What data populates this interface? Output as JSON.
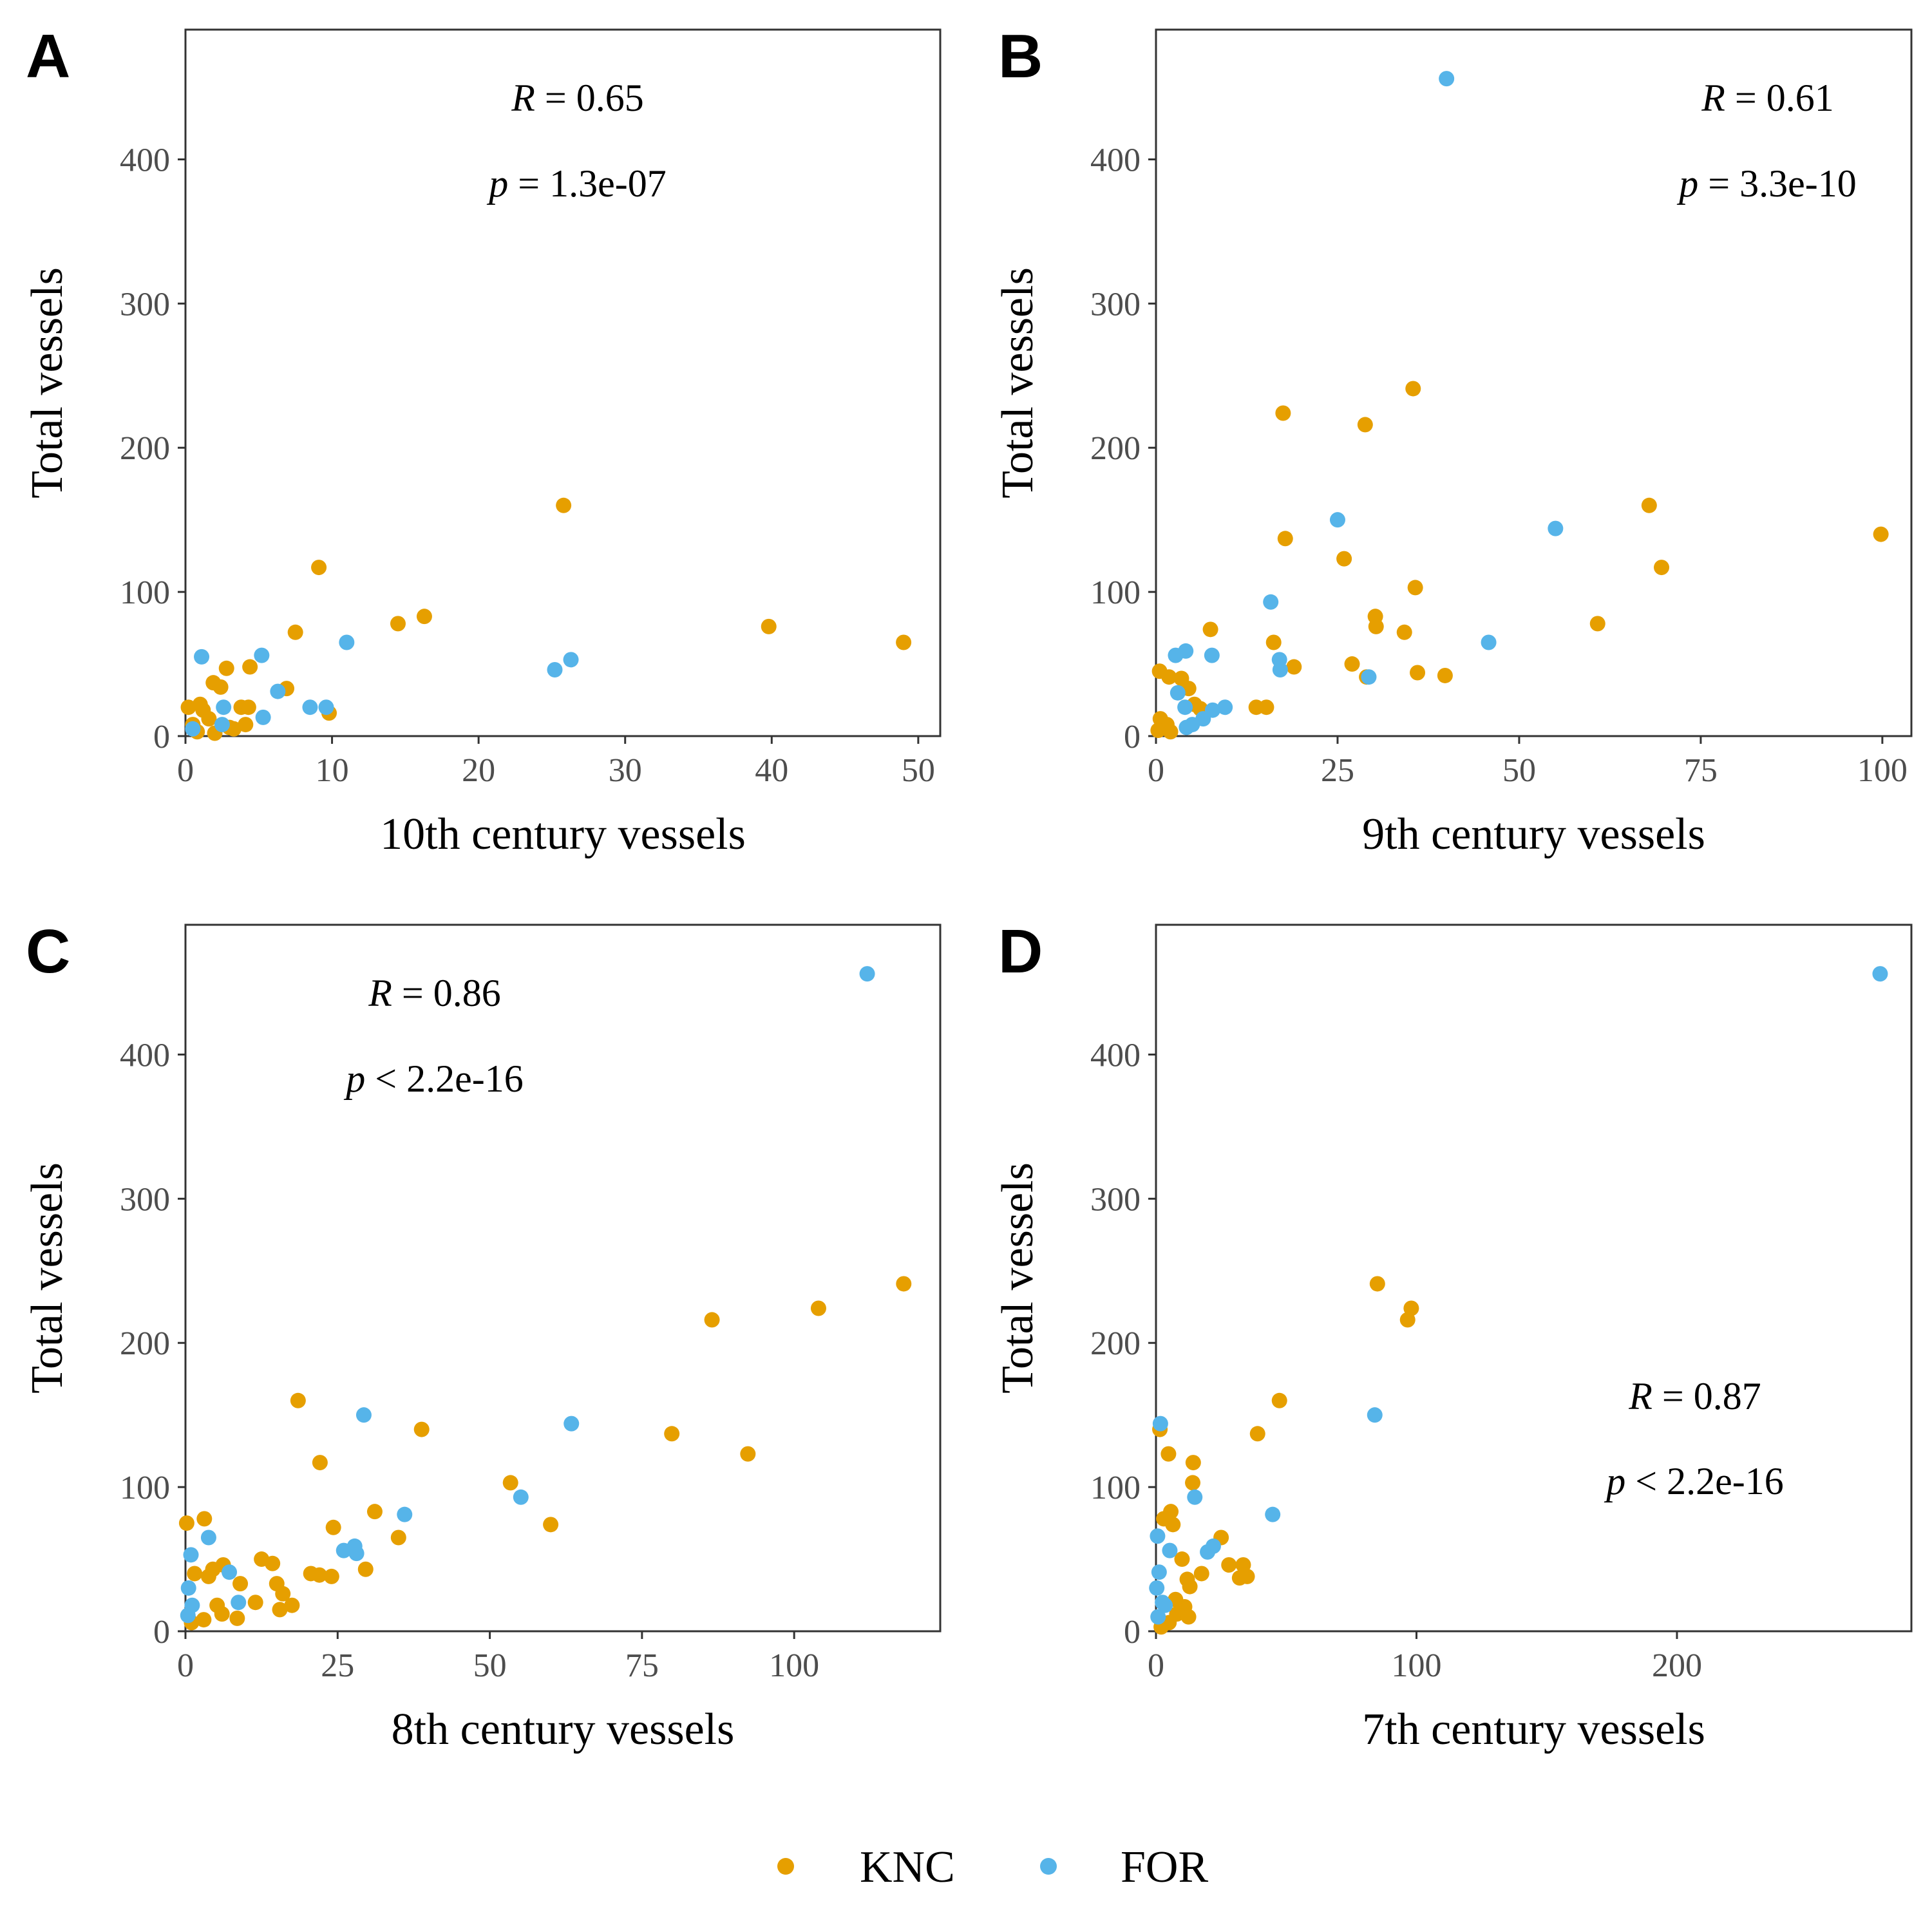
{
  "colors": {
    "KNC": "#E69F00",
    "FOR": "#56B4E9"
  },
  "legend": [
    {
      "name": "KNC",
      "color": "#E69F00"
    },
    {
      "name": "FOR",
      "color": "#56B4E9"
    }
  ],
  "chart_data": [
    {
      "type": "scatter",
      "panel": "A",
      "xlabel": "10th century vessels",
      "ylabel": "Total vessels",
      "xlim": [
        0,
        51.5
      ],
      "ylim": [
        0,
        490
      ],
      "xticks": [
        0,
        10,
        20,
        30,
        40,
        50
      ],
      "yticks": [
        0,
        100,
        200,
        300,
        400
      ],
      "grid": false,
      "annotation": {
        "r_label": "R",
        "r_text": " = 0.65",
        "p_label": "p",
        "p_text": " = 1.3e-07"
      },
      "series": [
        {
          "name": "KNC",
          "points": [
            [
              25.8,
              160
            ],
            [
              9.1,
              117
            ],
            [
              7.5,
              72
            ],
            [
              14.5,
              78
            ],
            [
              16.3,
              83
            ],
            [
              39.8,
              76
            ],
            [
              49.0,
              65
            ],
            [
              2.8,
              47
            ],
            [
              4.4,
              48
            ],
            [
              6.9,
              33
            ],
            [
              1.9,
              37
            ],
            [
              2.4,
              34
            ],
            [
              0.2,
              20
            ],
            [
              1.0,
              22
            ],
            [
              1.2,
              18
            ],
            [
              1.6,
              12
            ],
            [
              3.8,
              20
            ],
            [
              4.3,
              20
            ],
            [
              3.3,
              5
            ],
            [
              4.1,
              8
            ],
            [
              9.8,
              16
            ],
            [
              0.5,
              8
            ],
            [
              0.8,
              3
            ],
            [
              2.0,
              2
            ],
            [
              3.0,
              6
            ]
          ]
        },
        {
          "name": "FOR",
          "points": [
            [
              1.1,
              55
            ],
            [
              5.2,
              56
            ],
            [
              11.0,
              65
            ],
            [
              25.2,
              46
            ],
            [
              26.3,
              53
            ],
            [
              6.3,
              31
            ],
            [
              8.5,
              20
            ],
            [
              9.6,
              20
            ],
            [
              2.6,
              20
            ],
            [
              2.5,
              8
            ],
            [
              5.3,
              13
            ],
            [
              0.5,
              5
            ]
          ]
        }
      ]
    },
    {
      "type": "scatter",
      "panel": "B",
      "xlabel": "9th century vessels",
      "ylabel": "Total vessels",
      "xlim": [
        0,
        104
      ],
      "ylim": [
        0,
        490
      ],
      "xticks": [
        0,
        25,
        50,
        75,
        100
      ],
      "yticks": [
        0,
        100,
        200,
        300,
        400
      ],
      "grid": false,
      "annotation": {
        "r_label": "R",
        "r_text": " = 0.61",
        "p_label": "p",
        "p_text": " = 3.3e-10"
      },
      "series": [
        {
          "name": "KNC",
          "points": [
            [
              35.4,
              241
            ],
            [
              17.5,
              224
            ],
            [
              28.8,
              216
            ],
            [
              67.9,
              160
            ],
            [
              99.8,
              140
            ],
            [
              17.8,
              137
            ],
            [
              25.9,
              123
            ],
            [
              69.6,
              117
            ],
            [
              35.7,
              103
            ],
            [
              30.2,
              83
            ],
            [
              60.8,
              78
            ],
            [
              30.3,
              76
            ],
            [
              7.5,
              74
            ],
            [
              34.2,
              72
            ],
            [
              16.2,
              65
            ],
            [
              27.0,
              50
            ],
            [
              19.0,
              48
            ],
            [
              29.0,
              41
            ],
            [
              36.0,
              44
            ],
            [
              39.8,
              42
            ],
            [
              0.5,
              45
            ],
            [
              1.8,
              41
            ],
            [
              3.5,
              40
            ],
            [
              4.5,
              33
            ],
            [
              5.3,
              22
            ],
            [
              6.1,
              19
            ],
            [
              13.8,
              20
            ],
            [
              15.2,
              20
            ],
            [
              0.6,
              12
            ],
            [
              1.5,
              8
            ],
            [
              0.3,
              4
            ],
            [
              2.0,
              3
            ]
          ]
        },
        {
          "name": "FOR",
          "points": [
            [
              40.0,
              456
            ],
            [
              25.0,
              150
            ],
            [
              55.0,
              144
            ],
            [
              15.8,
              93
            ],
            [
              45.8,
              65
            ],
            [
              2.7,
              56
            ],
            [
              4.1,
              59
            ],
            [
              7.7,
              56
            ],
            [
              17.0,
              53
            ],
            [
              17.1,
              46
            ],
            [
              29.3,
              41
            ],
            [
              3.0,
              30
            ],
            [
              4.0,
              20
            ],
            [
              9.5,
              20
            ],
            [
              7.8,
              18
            ],
            [
              6.5,
              12
            ],
            [
              5.0,
              8
            ],
            [
              4.2,
              6
            ]
          ]
        }
      ]
    },
    {
      "type": "scatter",
      "panel": "C",
      "xlabel": "8th century vessels",
      "ylabel": "Total vessels",
      "xlim": [
        0,
        124
      ],
      "ylim": [
        0,
        490
      ],
      "xticks": [
        0,
        25,
        50,
        75,
        100
      ],
      "yticks": [
        0,
        100,
        200,
        300,
        400
      ],
      "grid": false,
      "annotation": {
        "r_label": "R",
        "r_text": " = 0.86",
        "p_label": "p",
        "p_text": " < 2.2e-16"
      },
      "series": [
        {
          "name": "KNC",
          "points": [
            [
              118.0,
              241
            ],
            [
              104.0,
              224
            ],
            [
              86.5,
              216
            ],
            [
              18.5,
              160
            ],
            [
              38.8,
              140
            ],
            [
              79.9,
              137
            ],
            [
              92.4,
              123
            ],
            [
              22.1,
              117
            ],
            [
              53.4,
              103
            ],
            [
              31.1,
              83
            ],
            [
              60.0,
              74
            ],
            [
              24.3,
              72
            ],
            [
              35.0,
              65
            ],
            [
              0.2,
              75
            ],
            [
              3.1,
              78
            ],
            [
              12.5,
              50
            ],
            [
              14.3,
              47
            ],
            [
              6.2,
              46
            ],
            [
              4.5,
              43
            ],
            [
              29.6,
              43
            ],
            [
              1.5,
              40
            ],
            [
              3.8,
              38
            ],
            [
              20.6,
              40
            ],
            [
              22.0,
              39
            ],
            [
              24.0,
              38
            ],
            [
              15.0,
              33
            ],
            [
              9.0,
              33
            ],
            [
              16.0,
              26
            ],
            [
              11.5,
              20
            ],
            [
              17.5,
              18
            ],
            [
              15.5,
              15
            ],
            [
              5.2,
              18
            ],
            [
              6.0,
              12
            ],
            [
              8.5,
              9
            ],
            [
              3.0,
              8
            ],
            [
              1.0,
              6
            ]
          ]
        },
        {
          "name": "FOR",
          "points": [
            [
              112.0,
              456
            ],
            [
              29.3,
              150
            ],
            [
              63.4,
              144
            ],
            [
              55.1,
              93
            ],
            [
              36.0,
              81
            ],
            [
              27.8,
              59
            ],
            [
              26.0,
              56
            ],
            [
              28.1,
              54
            ],
            [
              3.8,
              65
            ],
            [
              0.9,
              53
            ],
            [
              7.2,
              41
            ],
            [
              8.7,
              20
            ],
            [
              0.5,
              30
            ],
            [
              1.1,
              18
            ],
            [
              0.4,
              11
            ]
          ]
        }
      ]
    },
    {
      "type": "scatter",
      "panel": "D",
      "xlabel": "7th century vessels",
      "ylabel": "Total vessels",
      "xlim": [
        0,
        290
      ],
      "ylim": [
        0,
        490
      ],
      "xticks": [
        0,
        100,
        200
      ],
      "yticks": [
        0,
        100,
        200,
        300,
        400
      ],
      "grid": false,
      "annotation": {
        "r_label": "R",
        "r_text": " = 0.87",
        "p_label": "p",
        "p_text": " < 2.2e-16"
      },
      "series": [
        {
          "name": "KNC",
          "points": [
            [
              85.0,
              241
            ],
            [
              98.0,
              224
            ],
            [
              96.6,
              216
            ],
            [
              47.4,
              160
            ],
            [
              1.5,
              140
            ],
            [
              39.0,
              137
            ],
            [
              4.8,
              123
            ],
            [
              14.3,
              117
            ],
            [
              14.1,
              103
            ],
            [
              5.7,
              83
            ],
            [
              6.5,
              74
            ],
            [
              3.0,
              78
            ],
            [
              25.0,
              65
            ],
            [
              10.0,
              50
            ],
            [
              28.0,
              46
            ],
            [
              33.5,
              46
            ],
            [
              17.5,
              40
            ],
            [
              32.1,
              37
            ],
            [
              35.0,
              38
            ],
            [
              12.0,
              36
            ],
            [
              13.0,
              31
            ],
            [
              7.5,
              22
            ],
            [
              11.0,
              17
            ],
            [
              8.0,
              12
            ],
            [
              12.5,
              10
            ],
            [
              5.0,
              6
            ],
            [
              2.0,
              3
            ]
          ]
        },
        {
          "name": "FOR",
          "points": [
            [
              278.0,
              456
            ],
            [
              84.0,
              150
            ],
            [
              1.7,
              144
            ],
            [
              14.9,
              93
            ],
            [
              44.8,
              81
            ],
            [
              5.3,
              56
            ],
            [
              22.0,
              59
            ],
            [
              19.8,
              55
            ],
            [
              0.6,
              66
            ],
            [
              1.2,
              41
            ],
            [
              2.5,
              20
            ],
            [
              3.5,
              18
            ],
            [
              0.3,
              30
            ],
            [
              0.8,
              10
            ]
          ]
        }
      ]
    }
  ]
}
